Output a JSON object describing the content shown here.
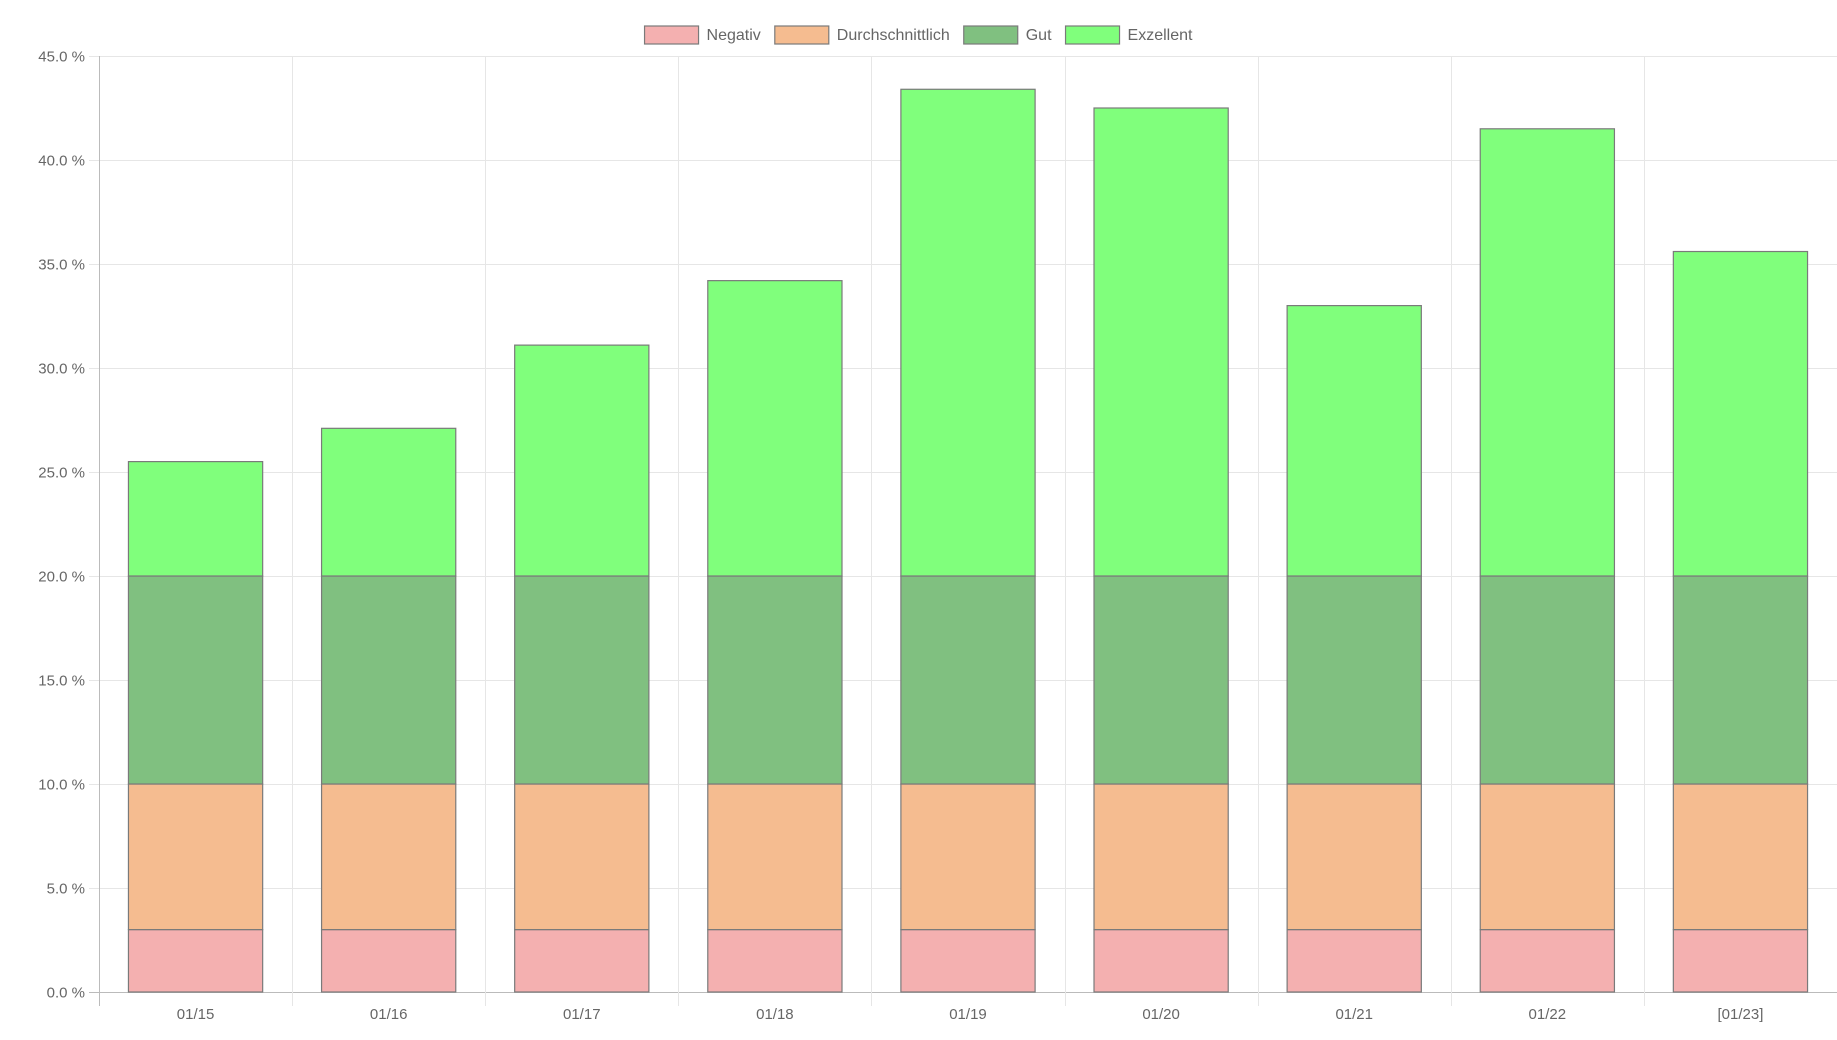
{
  "chart_data": {
    "type": "bar",
    "stacked": true,
    "title": "",
    "xlabel": "",
    "ylabel": "",
    "categories": [
      "01/15",
      "01/16",
      "01/17",
      "01/18",
      "01/19",
      "01/20",
      "01/21",
      "01/22",
      "[01/23]"
    ],
    "ylim": [
      0,
      45
    ],
    "y_ticks": [
      0,
      5,
      10,
      15,
      20,
      25,
      30,
      35,
      40,
      45
    ],
    "y_tick_labels": [
      "0.0 %",
      "5.0 %",
      "10.0 %",
      "15.0 %",
      "20.0 %",
      "25.0 %",
      "30.0 %",
      "35.0 %",
      "40.0 %",
      "45.0 %"
    ],
    "grid": true,
    "legend_position": "top-center",
    "series": [
      {
        "name": "Negativ",
        "color": "#f4b0b0",
        "values": [
          3,
          3,
          3,
          3,
          3,
          3,
          3,
          3,
          3
        ]
      },
      {
        "name": "Durchschnittlich",
        "color": "#f5bc90",
        "values": [
          7,
          7,
          7,
          7,
          7,
          7,
          7,
          7,
          7
        ]
      },
      {
        "name": "Gut",
        "color": "#80c080",
        "values": [
          10,
          10,
          10,
          10,
          10,
          10,
          10,
          10,
          10
        ]
      },
      {
        "name": "Exzellent",
        "color": "#80ff7c",
        "values": [
          5.5,
          7.1,
          11.1,
          14.2,
          23.4,
          22.5,
          13.0,
          21.5,
          15.6
        ]
      }
    ],
    "stroke_color": "#7a7a7a",
    "grid_color": "#e6e6e6",
    "axis_color": "#bbbbbb"
  }
}
